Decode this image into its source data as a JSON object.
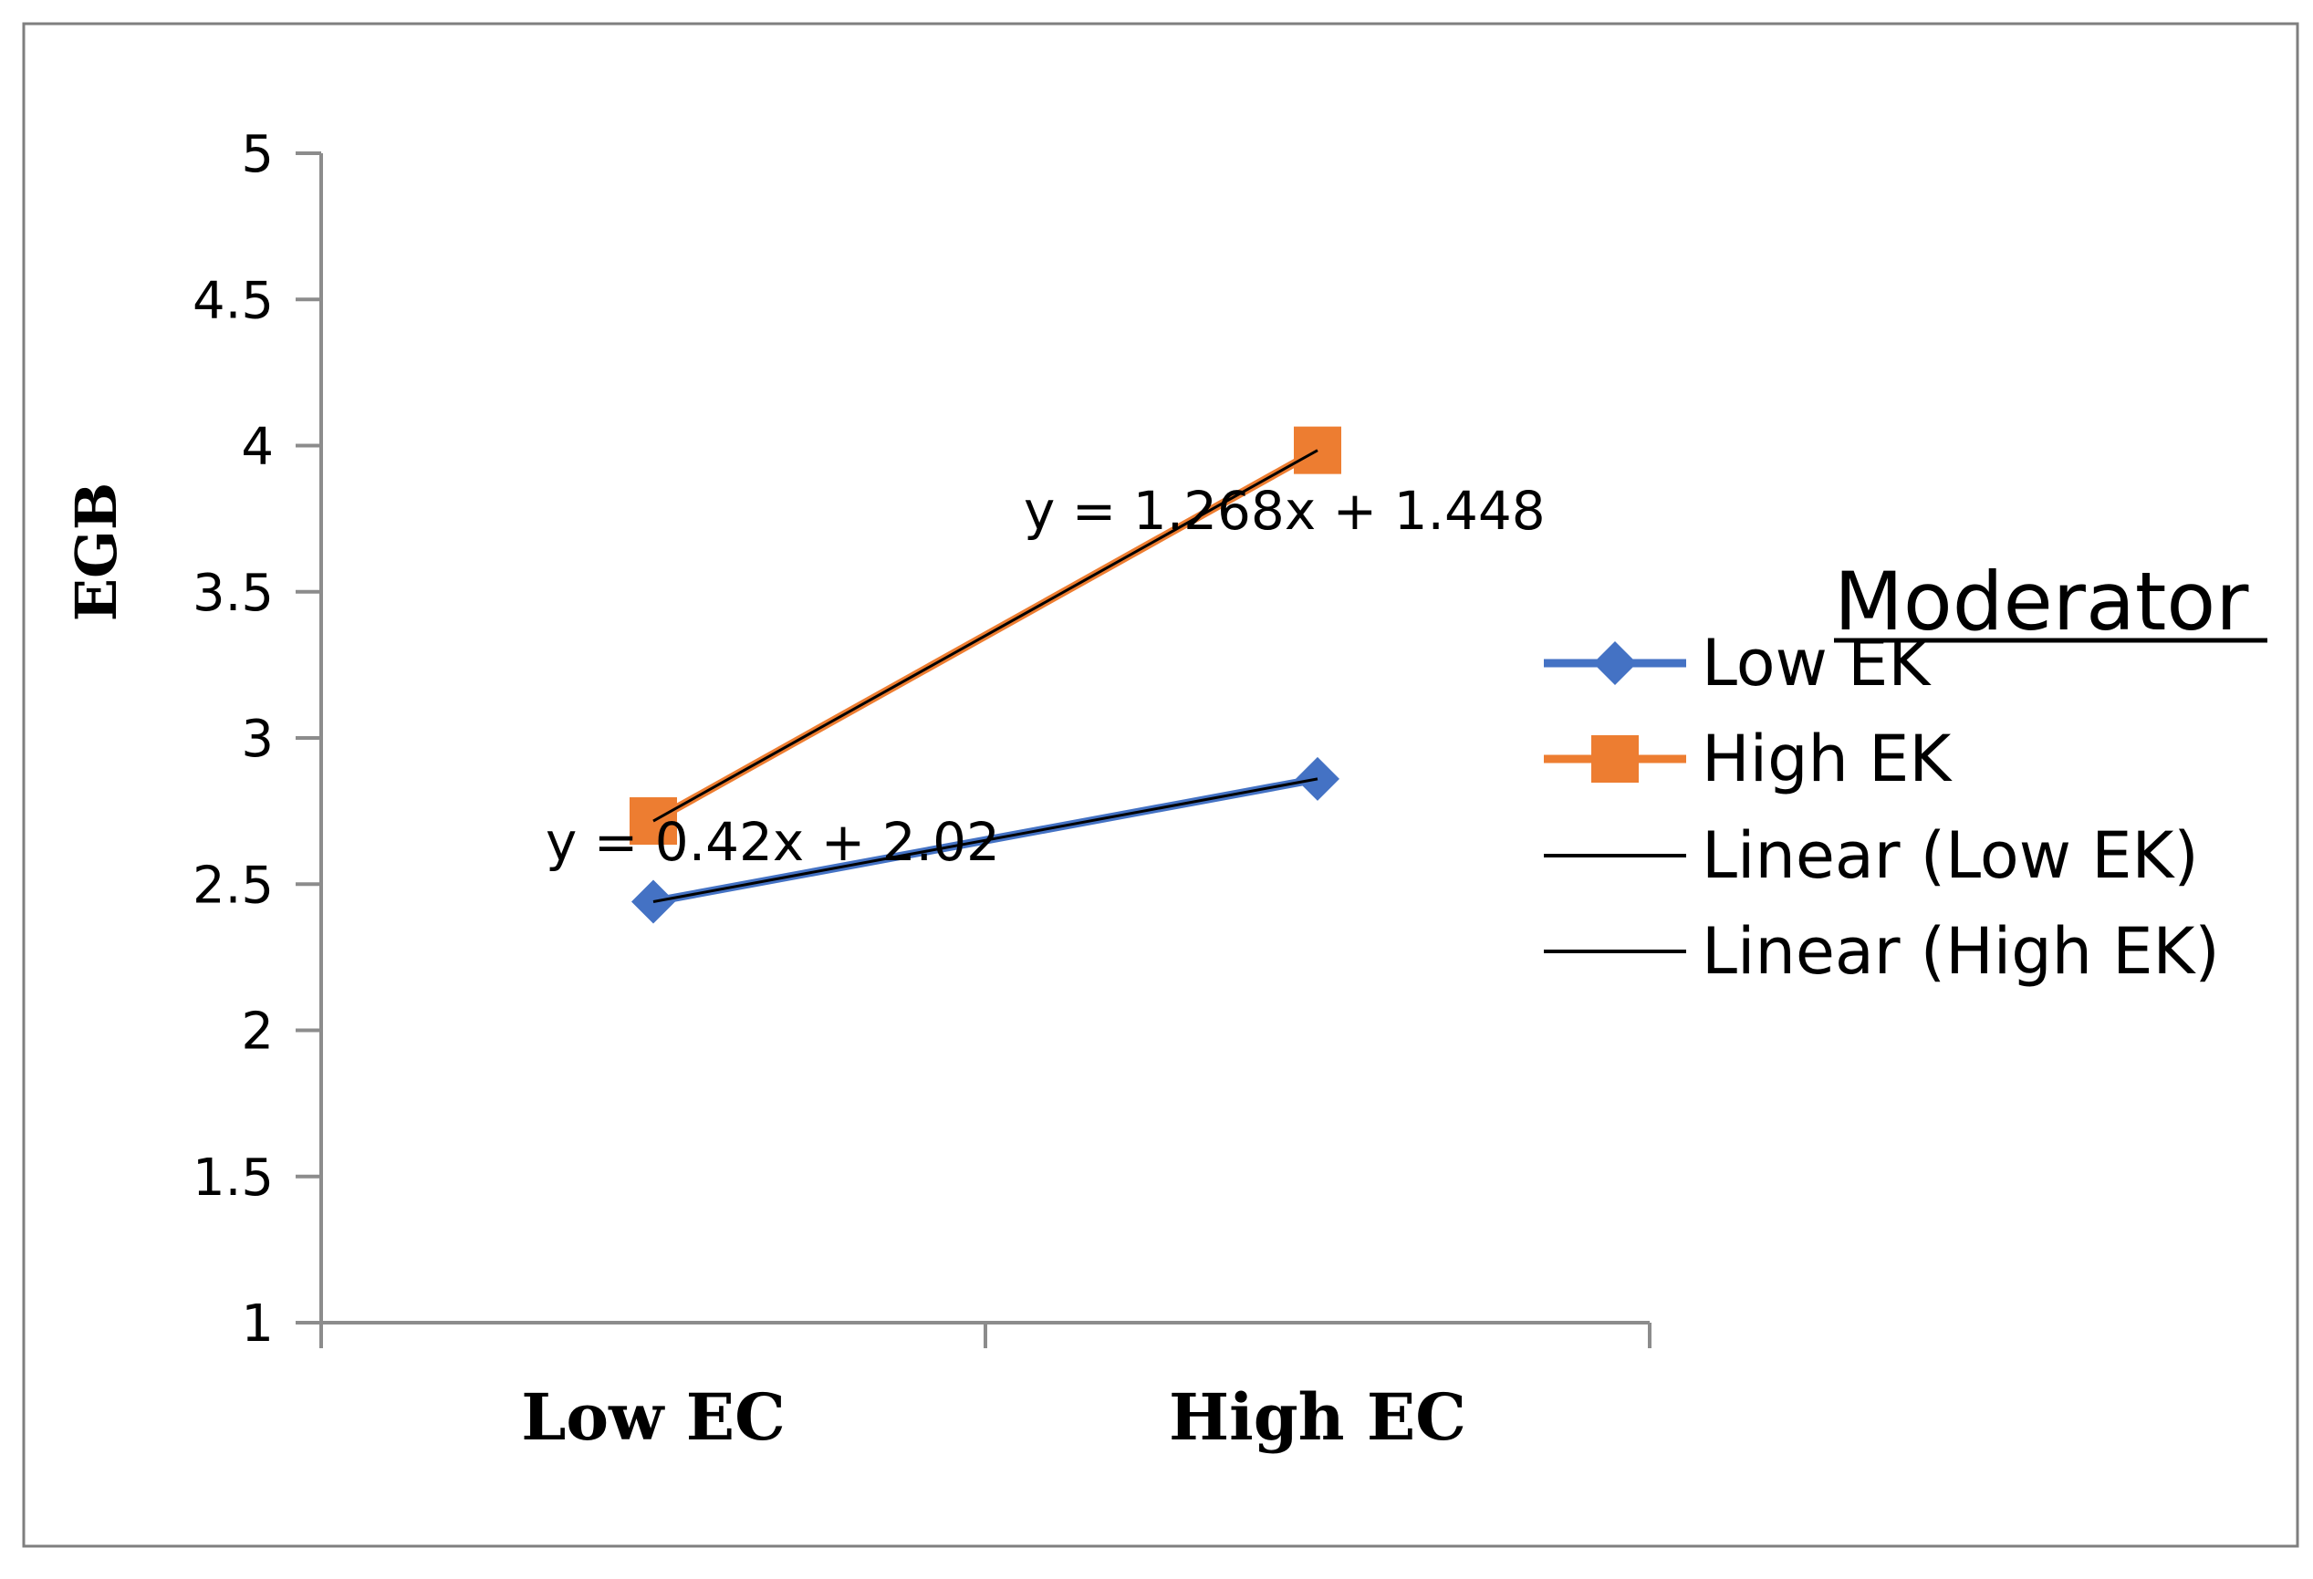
{
  "chart_data": {
    "type": "line",
    "title": "",
    "xlabel": "",
    "ylabel": "EGB",
    "categories": [
      "Low EC",
      "High EC"
    ],
    "ylim": [
      1,
      5
    ],
    "yticks": [
      "1",
      "1.5",
      "2",
      "2.5",
      "3",
      "3.5",
      "4",
      "4.5",
      "5"
    ],
    "series": [
      {
        "name": "Low EK",
        "values": [
          2.44,
          2.86
        ],
        "color": "#4472C4",
        "marker": "diamond",
        "trendline": {
          "name": "Linear (Low EK)",
          "equation": "y = 0.42x + 2.02",
          "slope": 0.42,
          "intercept": 2.02,
          "color": "#000000"
        }
      },
      {
        "name": "High EK",
        "values": [
          2.716,
          3.984
        ],
        "color": "#ED7D31",
        "marker": "square",
        "trendline": {
          "name": "Linear (High EK)",
          "equation": "y = 1.268x + 1.448",
          "slope": 1.268,
          "intercept": 1.448,
          "color": "#000000"
        }
      }
    ],
    "legend": {
      "title": "Moderator",
      "position": "right",
      "entries": [
        "Low EK",
        "High EK",
        "Linear (Low EK)",
        "Linear (High EK)"
      ]
    },
    "grid": false
  }
}
